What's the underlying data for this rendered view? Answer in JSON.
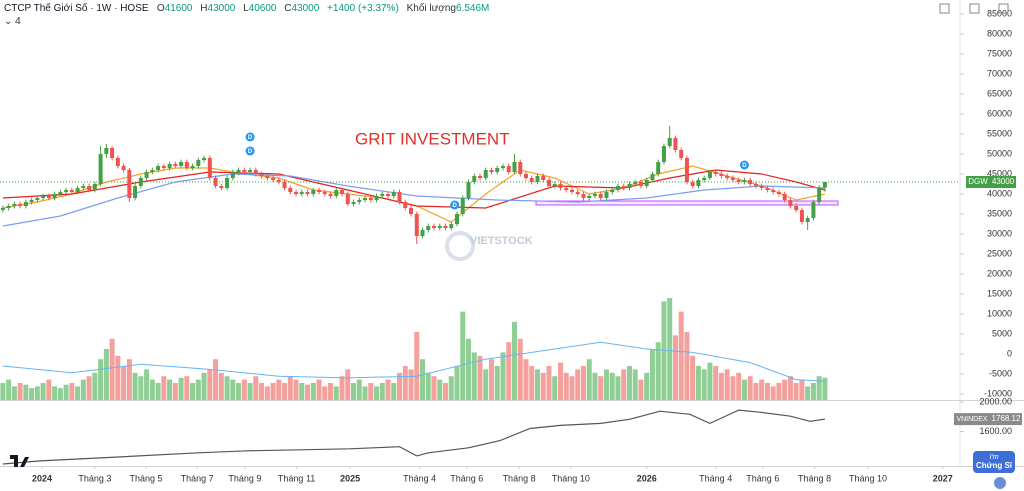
{
  "header": {
    "title": "CTCP Thế Giới Số · 1W · HOSE",
    "ohlc_labels": [
      "O",
      "H",
      "L",
      "C"
    ],
    "change": "+1400 (+3.37%)",
    "volume_label": "Khối lượng",
    "volume_value_label": "6.546M",
    "indicator_count": "4"
  },
  "watermarks": [
    "GRIT INVESTMENT",
    "VIETSTOCK"
  ],
  "badge": [
    "I'm",
    "Chứng Sĩ"
  ],
  "chart_data": [
    {
      "type": "candlestick",
      "symbol": "DGW",
      "up_color": "#43a047",
      "down_color": "#ef5350",
      "open": [
        36000,
        36500,
        37000,
        37500,
        37000,
        38000,
        38500,
        39000,
        39500,
        39000,
        40000,
        40500,
        41000,
        40500,
        41500,
        42000,
        41000,
        42500,
        50000,
        51500,
        49000,
        47000,
        46000,
        39000,
        42000,
        44000,
        45500,
        46000,
        47000,
        46500,
        47500,
        47000,
        48000,
        46500,
        47000,
        48500,
        49000,
        44000,
        42000,
        41500,
        44000,
        45500,
        46000,
        45500,
        46000,
        45000,
        44500,
        44000,
        43500,
        43000,
        41500,
        40500,
        40000,
        40500,
        40000,
        41000,
        40500,
        40000,
        39500,
        41000,
        40000,
        37500,
        38000,
        38500,
        39000,
        38500,
        39500,
        40000,
        39500,
        40500,
        38000,
        36500,
        35000,
        29500,
        31000,
        32000,
        31500,
        32000,
        31500,
        32500,
        35000,
        39000,
        43000,
        44500,
        44000,
        46000,
        45500,
        46500,
        47000,
        45500,
        48000,
        45000,
        44000,
        43000,
        44500,
        43500,
        42000,
        42500,
        41500,
        41000,
        40500,
        40000,
        39000,
        39500,
        40000,
        39000,
        40500,
        41000,
        42000,
        41500,
        42500,
        43000,
        42000,
        43500,
        45000,
        48000,
        52000,
        54000,
        51000,
        49000,
        43000,
        42000,
        43500,
        44000,
        45500,
        45000,
        44500,
        44000,
        43500,
        43000,
        43500,
        42500,
        42000,
        41500,
        41000,
        40500,
        40000,
        38500,
        37000,
        36000,
        33000,
        34000,
        38000,
        41600
      ],
      "high": [
        37100,
        37600,
        38100,
        38100,
        38600,
        39100,
        39600,
        40100,
        40100,
        40600,
        41100,
        41600,
        41600,
        42100,
        42600,
        42600,
        43100,
        52000,
        52500,
        52000,
        49600,
        47600,
        46500,
        42600,
        44600,
        46100,
        46600,
        47600,
        47600,
        48100,
        48100,
        48600,
        48600,
        47600,
        49100,
        49600,
        49600,
        44600,
        42600,
        44600,
        46100,
        46600,
        46600,
        46600,
        46600,
        45600,
        45100,
        44600,
        44100,
        43600,
        42100,
        41100,
        41100,
        41100,
        41600,
        41600,
        41100,
        40600,
        41600,
        41600,
        40600,
        38600,
        39100,
        39600,
        39600,
        40100,
        40600,
        40600,
        41100,
        41100,
        38600,
        37100,
        35600,
        31600,
        32600,
        32600,
        32600,
        32600,
        33100,
        35600,
        39600,
        43600,
        45100,
        45100,
        46600,
        46600,
        47100,
        47600,
        47600,
        50000,
        48600,
        45600,
        44600,
        45100,
        45100,
        44100,
        43100,
        43100,
        42100,
        41600,
        41100,
        40600,
        40100,
        40600,
        40600,
        41100,
        41600,
        42600,
        42600,
        43100,
        43600,
        43600,
        44100,
        45600,
        48600,
        52600,
        57000,
        54600,
        51600,
        49600,
        43600,
        44100,
        44600,
        46100,
        46100,
        45600,
        45100,
        44600,
        44100,
        44100,
        44100,
        43100,
        42600,
        42100,
        41600,
        41100,
        40600,
        39100,
        37600,
        36600,
        34600,
        38600,
        42200,
        43000
      ],
      "low": [
        35400,
        35900,
        36400,
        36400,
        36400,
        37400,
        37900,
        38400,
        38400,
        38400,
        39400,
        39900,
        39900,
        39900,
        40900,
        40400,
        40400,
        41900,
        49000,
        48400,
        46400,
        45400,
        38000,
        38400,
        41400,
        43400,
        44900,
        45400,
        45900,
        45900,
        46400,
        46400,
        45900,
        45900,
        46400,
        47900,
        43400,
        41400,
        40900,
        40900,
        43400,
        44900,
        44900,
        44900,
        44400,
        43900,
        43400,
        42900,
        42400,
        40900,
        39900,
        39400,
        39400,
        39400,
        39400,
        39900,
        39400,
        38900,
        38900,
        39400,
        36900,
        36900,
        37400,
        37900,
        37900,
        37900,
        38900,
        38900,
        38900,
        37400,
        35900,
        34400,
        27500,
        28900,
        30400,
        30900,
        30900,
        30900,
        30900,
        31900,
        34400,
        38400,
        42400,
        43400,
        43400,
        44900,
        44900,
        45900,
        44900,
        44900,
        44400,
        43400,
        42400,
        42400,
        42900,
        41400,
        41400,
        40900,
        40400,
        39900,
        39400,
        38400,
        38400,
        38900,
        38400,
        38400,
        39900,
        40400,
        40900,
        40900,
        41900,
        41400,
        41400,
        42900,
        44400,
        47400,
        51400,
        50400,
        48400,
        42400,
        41400,
        41400,
        42900,
        43400,
        44400,
        43900,
        43400,
        42900,
        42400,
        42400,
        41900,
        41400,
        40900,
        40400,
        39900,
        39400,
        37900,
        36400,
        35400,
        32400,
        31000,
        33400,
        37400,
        40600
      ],
      "close": [
        36500,
        37000,
        37500,
        37000,
        38000,
        38500,
        39000,
        39500,
        39000,
        40000,
        40500,
        41000,
        40500,
        41500,
        42000,
        41000,
        42500,
        50000,
        51500,
        49000,
        47000,
        46000,
        39000,
        42000,
        44000,
        45500,
        46000,
        47000,
        46500,
        47500,
        47000,
        48000,
        46500,
        47000,
        48500,
        49000,
        44000,
        42000,
        41500,
        44000,
        45500,
        46000,
        45500,
        46000,
        45000,
        44500,
        44000,
        43500,
        43000,
        41500,
        40500,
        40000,
        40500,
        40000,
        41000,
        40500,
        40000,
        39500,
        41000,
        40000,
        37500,
        38000,
        38500,
        39000,
        38500,
        39500,
        40000,
        39500,
        40500,
        38000,
        36500,
        35000,
        29500,
        31000,
        32000,
        31500,
        32000,
        31500,
        32500,
        35000,
        39000,
        43000,
        44500,
        44000,
        46000,
        45500,
        46500,
        47000,
        45500,
        48000,
        45000,
        44000,
        43000,
        44500,
        43500,
        42000,
        42500,
        41500,
        41000,
        40500,
        40000,
        39000,
        39500,
        40000,
        39000,
        40500,
        41000,
        42000,
        41500,
        42500,
        43000,
        42000,
        43500,
        45000,
        48000,
        52000,
        54000,
        51000,
        49000,
        43000,
        42000,
        43500,
        44000,
        45500,
        45000,
        44500,
        44000,
        43500,
        43000,
        43500,
        42500,
        42000,
        41500,
        41000,
        40500,
        40000,
        38500,
        37000,
        36000,
        33000,
        34000,
        38000,
        41600,
        43000
      ],
      "series": [
        {
          "color": "#f7a325",
          "x": [
            0,
            6,
            12,
            18,
            24,
            30,
            36,
            42,
            48,
            54,
            60,
            66,
            72,
            78,
            84,
            90,
            96,
            102,
            108,
            114,
            120,
            126,
            132,
            138,
            143
          ],
          "values": [
            36500,
            38000,
            40000,
            43000,
            45000,
            46500,
            46500,
            45000,
            44000,
            41000,
            40000,
            39000,
            37000,
            33000,
            40000,
            46000,
            44000,
            40000,
            41500,
            45000,
            47000,
            44500,
            42000,
            38500,
            40000
          ]
        },
        {
          "color": "#e52020",
          "x": [
            0,
            12,
            24,
            36,
            48,
            60,
            72,
            84,
            96,
            108,
            116,
            124,
            132,
            138,
            143
          ],
          "values": [
            39000,
            40000,
            43000,
            45500,
            45000,
            41000,
            37000,
            36500,
            42000,
            41500,
            44000,
            46000,
            45000,
            43000,
            41000
          ]
        },
        {
          "color": "#7b9ef0",
          "x": [
            0,
            10,
            20,
            30,
            40,
            50,
            60,
            72,
            86,
            100,
            112,
            122,
            132,
            143
          ],
          "values": [
            32000,
            34500,
            39000,
            43000,
            45000,
            44500,
            42000,
            39500,
            38500,
            38000,
            39000,
            41000,
            42000,
            41500
          ]
        }
      ],
      "dividends": {
        "x": [
          43,
          43,
          78.6,
          129
        ],
        "labels": [
          "D",
          "D",
          "D",
          "D"
        ]
      },
      "xlim": [
        -0.5,
        166.5
      ],
      "ylim": [
        -11500,
        88500
      ],
      "yticks": [
        85000,
        80000,
        75000,
        70000,
        65000,
        60000,
        55000,
        50000,
        45000,
        40000,
        35000,
        30000,
        25000,
        20000,
        15000,
        10000,
        5000,
        0,
        -5000,
        -10000
      ],
      "xticks": [
        {
          "value": 6.8,
          "label": "2024"
        },
        {
          "value": 16.0,
          "label": "Tháng 3"
        },
        {
          "value": 24.9,
          "label": "Tháng 5"
        },
        {
          "value": 33.8,
          "label": "Tháng 7"
        },
        {
          "value": 42.1,
          "label": "Tháng 9"
        },
        {
          "value": 51.1,
          "label": "Tháng 11"
        },
        {
          "value": 60.4,
          "label": "2025"
        },
        {
          "value": 72.5,
          "label": "Tháng 4"
        },
        {
          "value": 80.7,
          "label": "Tháng 6"
        },
        {
          "value": 89.8,
          "label": "Tháng 8"
        },
        {
          "value": 98.8,
          "label": "Tháng 10"
        },
        {
          "value": 112.0,
          "label": "2026"
        },
        {
          "value": 124.0,
          "label": "Tháng 4"
        },
        {
          "value": 132.2,
          "label": "Tháng 6"
        },
        {
          "value": 141.2,
          "label": "Tháng 8"
        },
        {
          "value": 150.5,
          "label": "Tháng 10"
        },
        {
          "value": 163.5,
          "label": "2027"
        }
      ]
    },
    {
      "type": "bar",
      "up_color": "#8fcf95",
      "down_color": "#f4a09c",
      "ylim": [
        0,
        30
      ],
      "values": [
        5,
        6,
        4,
        5,
        4.5,
        3.5,
        4,
        5,
        6,
        4,
        3.5,
        4.5,
        5,
        4,
        6,
        7,
        8,
        12,
        15,
        18,
        13,
        10,
        12,
        8,
        7,
        9,
        6,
        5,
        7,
        6,
        5,
        6.5,
        7,
        5,
        6,
        8,
        9,
        12,
        8,
        7,
        6,
        5,
        6,
        5,
        7,
        5,
        4,
        5,
        6,
        5,
        7,
        6,
        5,
        4.5,
        5,
        6,
        4,
        5,
        4,
        7,
        9,
        5,
        6,
        4,
        5,
        4,
        5,
        6,
        5,
        8,
        10,
        9,
        20,
        12,
        8,
        7,
        6,
        5,
        7,
        10,
        26,
        18,
        14,
        13,
        9,
        12,
        10,
        14,
        17,
        23,
        18,
        12,
        10,
        9,
        8,
        10,
        7,
        11,
        8,
        7,
        9,
        10,
        12,
        8,
        7,
        9,
        8,
        7,
        9,
        10,
        9,
        6,
        8,
        15,
        17,
        29,
        30,
        19,
        26,
        20,
        13,
        10,
        9,
        11,
        10,
        8,
        9,
        7,
        8,
        6,
        7,
        5,
        6,
        5,
        4,
        5,
        6,
        7,
        5,
        6,
        4,
        5,
        7,
        6.546
      ],
      "series": [
        {
          "color": "#64b5f6",
          "x": [
            0,
            12,
            24,
            36,
            48,
            60,
            72,
            84,
            96,
            104,
            112,
            120,
            130,
            138,
            143
          ],
          "values": [
            10,
            8,
            10.5,
            9,
            7,
            6.5,
            7,
            12,
            15,
            17,
            15,
            14,
            11,
            6,
            5.5
          ]
        }
      ]
    },
    {
      "type": "line",
      "name": "VNINDEX",
      "color": "#555555",
      "ylim": [
        1131.4,
        2027.6
      ],
      "yticks": [
        {
          "value": 2000,
          "label": "2000.00"
        },
        {
          "value": 1600,
          "label": "1600.00"
        }
      ],
      "x": [
        0,
        6.5,
        17,
        34,
        42.5,
        51.6,
        60.4,
        69,
        72,
        74,
        81,
        86.5,
        91.7,
        97,
        104,
        109,
        114.3,
        119.5,
        123,
        128,
        131.7,
        137,
        140.4,
        143
      ],
      "values": [
        1158,
        1200,
        1241,
        1310,
        1338,
        1351,
        1365,
        1393,
        1268,
        1310,
        1379,
        1476,
        1641,
        1683,
        1710,
        1765,
        1876,
        1834,
        1710,
        1890,
        1862,
        1807,
        1738,
        1768.12
      ]
    }
  ]
}
